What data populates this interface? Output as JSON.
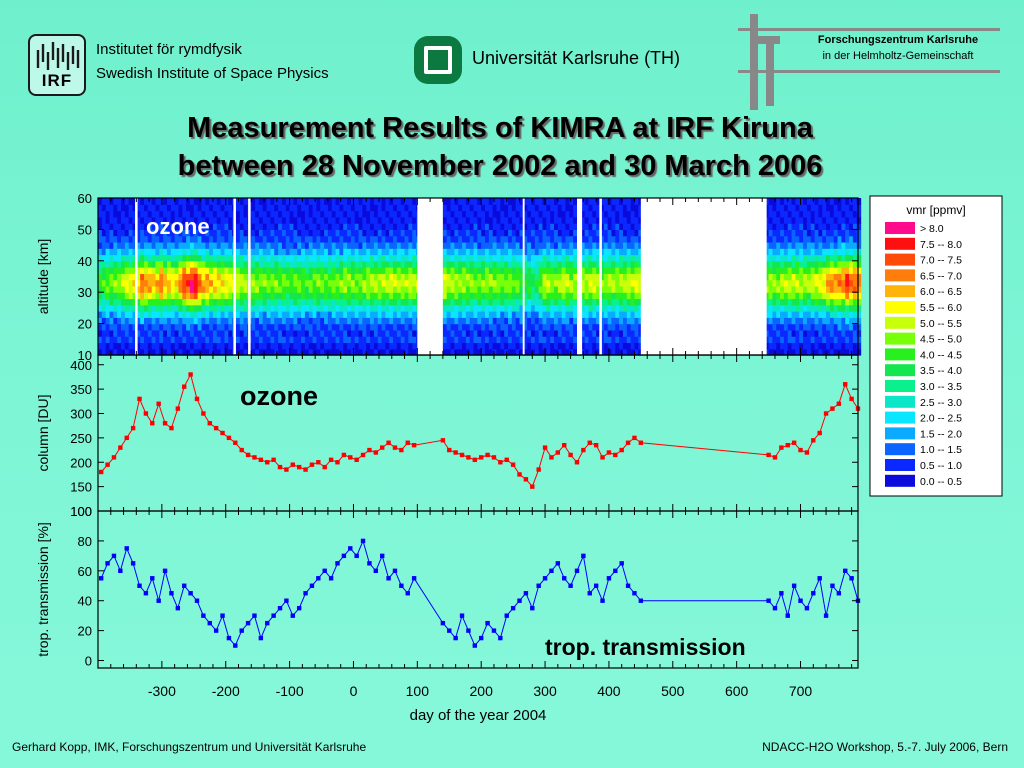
{
  "header": {
    "irf_logo_text": "IRF",
    "irf_line1": "Institutet för rymdfysik",
    "irf_line2": "Swedish Institute of Space Physics",
    "uni_name": "Universität Karlsruhe (TH)",
    "fzk_line1": "Forschungszentrum Karlsruhe",
    "fzk_line2": "in der Helmholtz-Gemeinschaft"
  },
  "title": {
    "line1": "Measurement Results of KIMRA at IRF Kiruna",
    "line2": "between 28 November 2002 and 30 March 2006"
  },
  "footer": {
    "left": "Gerhard Kopp, IMK, Forschungszentrum und Universität Karlsruhe",
    "right": "NDACC-H2O Workshop, 5.-7. July 2006, Bern"
  },
  "chart_data": [
    {
      "type": "heatmap",
      "annotation": "ozone",
      "ylabel": "altitude [km]",
      "xlim": [
        -400,
        790
      ],
      "ylim": [
        10,
        60
      ],
      "yticks": [
        10,
        20,
        30,
        40,
        50,
        60
      ],
      "data_gaps": [
        [
          -342,
          -338
        ],
        [
          -188,
          -184
        ],
        [
          -165,
          -161
        ],
        [
          100,
          140
        ],
        [
          265,
          268
        ],
        [
          350,
          358
        ],
        [
          385,
          389
        ],
        [
          450,
          647
        ]
      ],
      "peak_altitude_km": 33,
      "colorbar": {
        "title": "vmr [ppmv]",
        "bins": [
          {
            "label": ">  8.0",
            "color": "#ff0a8c"
          },
          {
            "label": "7.5  --  8.0",
            "color": "#ff1010"
          },
          {
            "label": "7.0  --  7.5",
            "color": "#ff4a0a"
          },
          {
            "label": "6.5  --  7.0",
            "color": "#ff7d0a"
          },
          {
            "label": "6.0  --  6.5",
            "color": "#ffb40a"
          },
          {
            "label": "5.5  --  6.0",
            "color": "#ffff00"
          },
          {
            "label": "5.0  --  5.5",
            "color": "#c8ff0a"
          },
          {
            "label": "4.5  --  5.0",
            "color": "#78ff0a"
          },
          {
            "label": "4.0  --  4.5",
            "color": "#28f01e"
          },
          {
            "label": "3.5  --  4.0",
            "color": "#14e650"
          },
          {
            "label": "3.0  --  3.5",
            "color": "#0af08c"
          },
          {
            "label": "2.5  --  3.0",
            "color": "#0ae6c8"
          },
          {
            "label": "2.0  --  2.5",
            "color": "#0ae6ff"
          },
          {
            "label": "1.5  --  2.0",
            "color": "#0aaaff"
          },
          {
            "label": "1.0  --  1.5",
            "color": "#0a64ff"
          },
          {
            "label": "0.5  --  1.0",
            "color": "#0a28ff"
          },
          {
            "label": "0.0  --  0.5",
            "color": "#0a0adc"
          }
        ]
      }
    },
    {
      "type": "line",
      "annotation": "ozone",
      "ylabel": "column [DU]",
      "xlim": [
        -400,
        790
      ],
      "ylim": [
        100,
        420
      ],
      "yticks": [
        100,
        150,
        200,
        250,
        300,
        350,
        400
      ],
      "series": [
        {
          "color": "#ff0000",
          "x": [
            -395,
            -385,
            -375,
            -365,
            -355,
            -345,
            -335,
            -325,
            -315,
            -305,
            -295,
            -285,
            -275,
            -265,
            -255,
            -245,
            -235,
            -225,
            -215,
            -205,
            -195,
            -185,
            -175,
            -165,
            -155,
            -145,
            -135,
            -125,
            -115,
            -105,
            -95,
            -85,
            -75,
            -65,
            -55,
            -45,
            -35,
            -25,
            -15,
            -5,
            5,
            15,
            25,
            35,
            45,
            55,
            65,
            75,
            85,
            95,
            140,
            150,
            160,
            170,
            180,
            190,
            200,
            210,
            220,
            230,
            240,
            250,
            260,
            270,
            280,
            290,
            300,
            310,
            320,
            330,
            340,
            350,
            360,
            370,
            380,
            390,
            400,
            410,
            420,
            430,
            440,
            450,
            650,
            660,
            670,
            680,
            690,
            700,
            710,
            720,
            730,
            740,
            750,
            760,
            770,
            780,
            790
          ],
          "y": [
            180,
            195,
            210,
            230,
            250,
            270,
            330,
            300,
            280,
            320,
            280,
            270,
            310,
            355,
            380,
            330,
            300,
            280,
            270,
            260,
            250,
            240,
            225,
            215,
            210,
            205,
            200,
            205,
            190,
            185,
            195,
            190,
            185,
            195,
            200,
            190,
            205,
            200,
            215,
            210,
            205,
            215,
            225,
            220,
            230,
            240,
            230,
            225,
            240,
            235,
            245,
            225,
            220,
            215,
            210,
            205,
            210,
            215,
            210,
            200,
            205,
            195,
            175,
            165,
            150,
            185,
            230,
            210,
            220,
            235,
            215,
            200,
            225,
            240,
            235,
            210,
            220,
            215,
            225,
            240,
            250,
            240,
            215,
            210,
            230,
            235,
            240,
            225,
            220,
            245,
            260,
            300,
            310,
            320,
            360,
            330,
            310
          ]
        }
      ]
    },
    {
      "type": "line",
      "annotation": "trop. transmission",
      "ylabel": "trop. transmission [%]",
      "xlabel": "day of the year 2004",
      "xlim": [
        -400,
        790
      ],
      "ylim": [
        -5,
        100
      ],
      "yticks": [
        0,
        20,
        40,
        60,
        80,
        100
      ],
      "xticks": [
        -300,
        -200,
        -100,
        0,
        100,
        200,
        300,
        400,
        500,
        600,
        700
      ],
      "series": [
        {
          "color": "#0000ff",
          "x": [
            -395,
            -385,
            -375,
            -365,
            -355,
            -345,
            -335,
            -325,
            -315,
            -305,
            -295,
            -285,
            -275,
            -265,
            -255,
            -245,
            -235,
            -225,
            -215,
            -205,
            -195,
            -185,
            -175,
            -165,
            -155,
            -145,
            -135,
            -125,
            -115,
            -105,
            -95,
            -85,
            -75,
            -65,
            -55,
            -45,
            -35,
            -25,
            -15,
            -5,
            5,
            15,
            25,
            35,
            45,
            55,
            65,
            75,
            85,
            95,
            140,
            150,
            160,
            170,
            180,
            190,
            200,
            210,
            220,
            230,
            240,
            250,
            260,
            270,
            280,
            290,
            300,
            310,
            320,
            330,
            340,
            350,
            360,
            370,
            380,
            390,
            400,
            410,
            420,
            430,
            440,
            450,
            650,
            660,
            670,
            680,
            690,
            700,
            710,
            720,
            730,
            740,
            750,
            760,
            770,
            780,
            790
          ],
          "y": [
            55,
            65,
            70,
            60,
            75,
            65,
            50,
            45,
            55,
            40,
            60,
            45,
            35,
            50,
            45,
            40,
            30,
            25,
            20,
            30,
            15,
            10,
            20,
            25,
            30,
            15,
            25,
            30,
            35,
            40,
            30,
            35,
            45,
            50,
            55,
            60,
            55,
            65,
            70,
            75,
            70,
            80,
            65,
            60,
            70,
            55,
            60,
            50,
            45,
            55,
            25,
            20,
            15,
            30,
            20,
            10,
            15,
            25,
            20,
            15,
            30,
            35,
            40,
            45,
            35,
            50,
            55,
            60,
            65,
            55,
            50,
            60,
            70,
            45,
            50,
            40,
            55,
            60,
            65,
            50,
            45,
            40,
            40,
            35,
            45,
            30,
            50,
            40,
            35,
            45,
            55,
            30,
            50,
            45,
            60,
            55,
            40
          ]
        }
      ]
    }
  ]
}
